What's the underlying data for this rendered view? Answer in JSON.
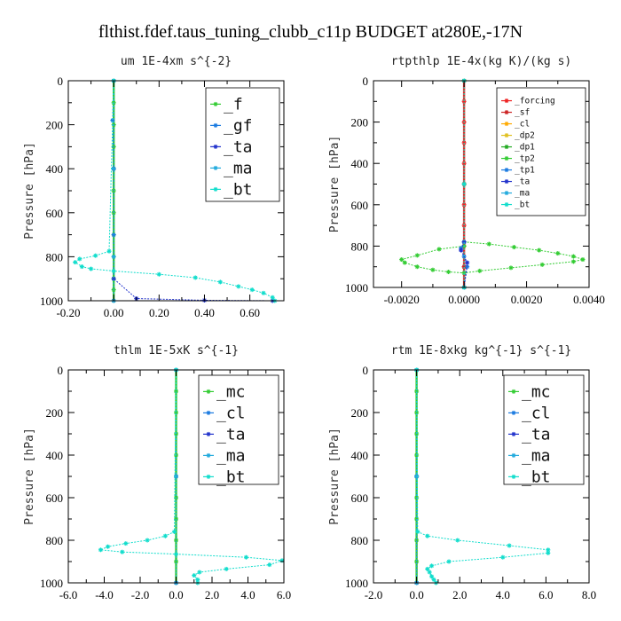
{
  "title": "flthist.fdef.taus_tuning_clubb_c11p  BUDGET at280E,-17N",
  "chart_data": [
    {
      "type": "line",
      "name": "um",
      "title": "um   1E-4xm s^{-2}",
      "ylabel": "Pressure [hPa]",
      "xlabel": "",
      "xlim": [
        -0.2,
        0.75
      ],
      "ylim": [
        1000,
        0
      ],
      "xticks": [
        -0.2,
        0.0,
        0.2,
        0.4,
        0.6
      ],
      "xtick_labels": [
        "-0.20",
        "0.00",
        "0.20",
        "0.40",
        "0.60"
      ],
      "yticks": [
        0,
        200,
        400,
        600,
        800,
        1000
      ],
      "ytick_labels": [
        "0",
        "200",
        "400",
        "600",
        "800",
        "1000"
      ],
      "legend_position": "top-right",
      "series": [
        {
          "name": "_f",
          "color": "#33cc33",
          "x": [
            0,
            0,
            0,
            0,
            0,
            0,
            0,
            0,
            0,
            0,
            0,
            0
          ],
          "y": [
            0,
            100,
            200,
            300,
            400,
            500,
            600,
            700,
            800,
            900,
            950,
            1000
          ]
        },
        {
          "name": "_gf",
          "color": "#1a7ae0",
          "x": [
            0,
            -0.005,
            0,
            0,
            0
          ],
          "y": [
            0,
            180,
            400,
            700,
            1000
          ]
        },
        {
          "name": "_ta",
          "color": "#2233cc",
          "x": [
            0,
            0,
            0,
            0.1,
            0.4,
            0.7
          ],
          "y": [
            0,
            400,
            900,
            990,
            998,
            1000
          ]
        },
        {
          "name": "_ma",
          "color": "#22aadd",
          "x": [
            0,
            0,
            0,
            0
          ],
          "y": [
            0,
            400,
            800,
            1000
          ]
        },
        {
          "name": "_bt",
          "color": "#11ddcc",
          "x": [
            0,
            -0.02,
            -0.08,
            -0.15,
            -0.17,
            -0.14,
            -0.1,
            0.0,
            0.2,
            0.36,
            0.47,
            0.55,
            0.61,
            0.66,
            0.7,
            0.71
          ],
          "y": [
            0,
            775,
            795,
            810,
            825,
            845,
            855,
            865,
            880,
            895,
            915,
            935,
            950,
            965,
            985,
            1000
          ]
        }
      ]
    },
    {
      "type": "line",
      "name": "rtpthlp",
      "title": "rtpthlp   1E-4x(kg K)/(kg s)",
      "ylabel": "Pressure [hPa]",
      "xlabel": "",
      "xlim": [
        -0.0029,
        0.004
      ],
      "ylim": [
        1000,
        0
      ],
      "xticks": [
        -0.002,
        0.0,
        0.002,
        0.004
      ],
      "xtick_labels": [
        "-0.0020",
        "0.0000",
        "0.0020",
        "0.0040"
      ],
      "yticks": [
        0,
        200,
        400,
        600,
        800,
        1000
      ],
      "ytick_labels": [
        "0",
        "200",
        "400",
        "600",
        "800",
        "1000"
      ],
      "legend_position": "top-right",
      "series": [
        {
          "name": "_forcing",
          "color": "#ee2222",
          "x": [
            0,
            0,
            0,
            0,
            0,
            0,
            0,
            0,
            0,
            0,
            0
          ],
          "y": [
            0,
            100,
            200,
            300,
            400,
            500,
            600,
            700,
            800,
            900,
            1000
          ]
        },
        {
          "name": "_sf",
          "color": "#cc2222",
          "x": [
            0,
            0,
            0,
            0
          ],
          "y": [
            0,
            500,
            900,
            1000
          ]
        },
        {
          "name": "_cl",
          "color": "#ffaa00",
          "x": [
            0,
            0,
            0
          ],
          "y": [
            0,
            500,
            1000
          ]
        },
        {
          "name": "_dp2",
          "color": "#e0c020",
          "x": [
            0,
            0,
            0
          ],
          "y": [
            0,
            500,
            1000
          ]
        },
        {
          "name": "_dp1",
          "color": "#22aa22",
          "x": [
            0,
            0,
            0
          ],
          "y": [
            0,
            500,
            1000
          ]
        },
        {
          "name": "_tp2",
          "color": "#33cc33",
          "x": [
            0,
            0.0008,
            0.0016,
            0.0024,
            0.003,
            0.0035,
            0.0038,
            0.0035,
            0.0025,
            0.0015,
            0.0005,
            0,
            -0.0005,
            -0.001,
            -0.0015,
            -0.0019,
            -0.002,
            -0.0015,
            -0.0008,
            0
          ],
          "y": [
            780,
            790,
            805,
            820,
            835,
            850,
            865,
            875,
            890,
            905,
            920,
            930,
            925,
            915,
            900,
            880,
            865,
            845,
            815,
            800
          ]
        },
        {
          "name": "_tp1",
          "color": "#1a7ae0",
          "x": [
            0,
            -0.0001,
            0,
            0.0001,
            0
          ],
          "y": [
            780,
            810,
            850,
            900,
            1000
          ]
        },
        {
          "name": "_ta",
          "color": "#2233cc",
          "x": [
            0,
            -0.0001,
            0.0001,
            0
          ],
          "y": [
            780,
            820,
            880,
            1000
          ]
        },
        {
          "name": "_ma",
          "color": "#22aadd",
          "x": [
            0,
            0,
            0
          ],
          "y": [
            0,
            500,
            1000
          ]
        },
        {
          "name": "_bt",
          "color": "#11ddcc",
          "x": [
            0,
            0,
            0
          ],
          "y": [
            0,
            500,
            1000
          ]
        }
      ]
    },
    {
      "type": "line",
      "name": "thlm",
      "title": "thlm   1E-5xK s^{-1}",
      "ylabel": "Pressure [hPa]",
      "xlabel": "",
      "xlim": [
        -6.0,
        6.0
      ],
      "ylim": [
        1000,
        0
      ],
      "xticks": [
        -6.0,
        -4.0,
        -2.0,
        0.0,
        2.0,
        4.0,
        6.0
      ],
      "xtick_labels": [
        "-6.0",
        "-4.0",
        "-2.0",
        "0.0",
        "2.0",
        "4.0",
        "6.0"
      ],
      "yticks": [
        0,
        200,
        400,
        600,
        800,
        1000
      ],
      "ytick_labels": [
        "0",
        "200",
        "400",
        "600",
        "800",
        "1000"
      ],
      "legend_position": "top-right",
      "series": [
        {
          "name": "_mc",
          "color": "#33cc33",
          "x": [
            0,
            0,
            0,
            0,
            0,
            0,
            0,
            0,
            0,
            0,
            0
          ],
          "y": [
            0,
            100,
            200,
            300,
            400,
            500,
            600,
            700,
            800,
            900,
            1000
          ]
        },
        {
          "name": "_cl",
          "color": "#1a7ae0",
          "x": [
            0,
            0,
            0
          ],
          "y": [
            0,
            500,
            1000
          ]
        },
        {
          "name": "_ta",
          "color": "#2233cc",
          "x": [
            0,
            0,
            0
          ],
          "y": [
            0,
            500,
            1000
          ]
        },
        {
          "name": "_ma",
          "color": "#22aadd",
          "x": [
            0,
            0,
            0
          ],
          "y": [
            0,
            500,
            1000
          ]
        },
        {
          "name": "_bt",
          "color": "#11ddcc",
          "x": [
            0,
            -0.1,
            -0.6,
            -1.6,
            -2.8,
            -3.8,
            -4.2,
            -3.0,
            0.0,
            3.9,
            5.9,
            5.2,
            2.8,
            1.3,
            1.0,
            1.2,
            1.2
          ],
          "y": [
            0,
            760,
            780,
            800,
            815,
            830,
            845,
            855,
            865,
            880,
            895,
            915,
            935,
            950,
            965,
            985,
            1000
          ]
        }
      ]
    },
    {
      "type": "line",
      "name": "rtm",
      "title": "rtm   1E-8xkg kg^{-1} s^{-1}",
      "ylabel": "Pressure [hPa]",
      "xlabel": "",
      "xlim": [
        -2.0,
        8.0
      ],
      "ylim": [
        1000,
        0
      ],
      "xticks": [
        -2.0,
        0.0,
        2.0,
        4.0,
        6.0,
        8.0
      ],
      "xtick_labels": [
        "-2.0",
        "0.0",
        "2.0",
        "4.0",
        "6.0",
        "8.0"
      ],
      "yticks": [
        0,
        200,
        400,
        600,
        800,
        1000
      ],
      "ytick_labels": [
        "0",
        "200",
        "400",
        "600",
        "800",
        "1000"
      ],
      "legend_position": "top-right",
      "series": [
        {
          "name": "_mc",
          "color": "#33cc33",
          "x": [
            0,
            0,
            0,
            0,
            0,
            0,
            0,
            0,
            0,
            0,
            0
          ],
          "y": [
            0,
            100,
            200,
            300,
            400,
            500,
            600,
            700,
            800,
            900,
            1000
          ]
        },
        {
          "name": "_cl",
          "color": "#1a7ae0",
          "x": [
            0,
            0,
            0
          ],
          "y": [
            0,
            500,
            1000
          ]
        },
        {
          "name": "_ta",
          "color": "#2233cc",
          "x": [
            0,
            0,
            0
          ],
          "y": [
            0,
            500,
            1000
          ]
        },
        {
          "name": "_ma",
          "color": "#22aadd",
          "x": [
            0,
            0,
            0
          ],
          "y": [
            0,
            500,
            1000
          ]
        },
        {
          "name": "_bt",
          "color": "#11ddcc",
          "x": [
            0,
            0.05,
            0.5,
            1.9,
            4.3,
            6.1,
            6.1,
            4.0,
            1.5,
            0.7,
            0.5,
            0.6,
            0.7,
            0.8,
            0.9
          ],
          "y": [
            0,
            760,
            780,
            800,
            825,
            845,
            860,
            880,
            900,
            920,
            935,
            950,
            970,
            985,
            1000
          ]
        }
      ]
    }
  ]
}
